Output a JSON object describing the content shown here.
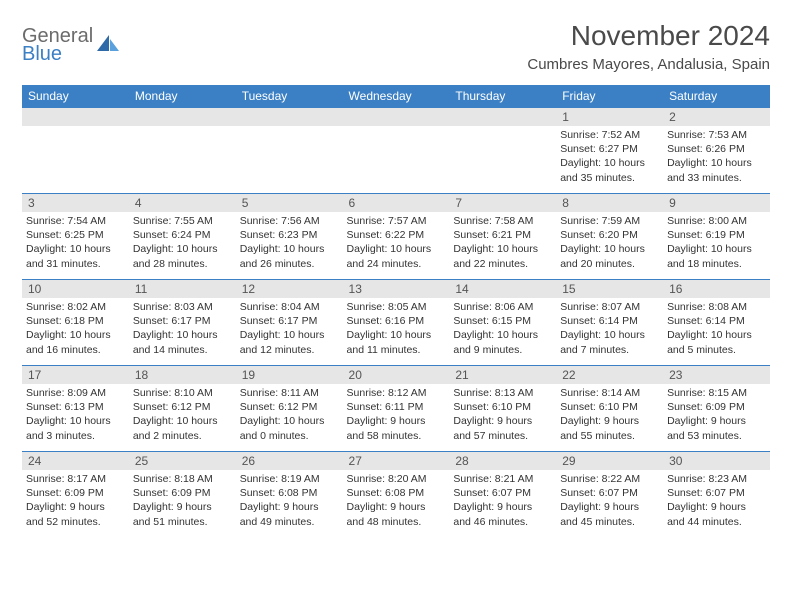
{
  "brand": {
    "line1": "General",
    "line2": "Blue"
  },
  "title": "November 2024",
  "location": "Cumbres Mayores, Andalusia, Spain",
  "colors": {
    "header_bg": "#3b7fc4",
    "daynum_bg": "#e6e6e6",
    "border": "#3b7fc4"
  },
  "day_headers": [
    "Sunday",
    "Monday",
    "Tuesday",
    "Wednesday",
    "Thursday",
    "Friday",
    "Saturday"
  ],
  "weeks": [
    [
      null,
      null,
      null,
      null,
      null,
      {
        "n": "1",
        "sr": "Sunrise: 7:52 AM",
        "ss": "Sunset: 6:27 PM",
        "dl1": "Daylight: 10 hours",
        "dl2": "and 35 minutes."
      },
      {
        "n": "2",
        "sr": "Sunrise: 7:53 AM",
        "ss": "Sunset: 6:26 PM",
        "dl1": "Daylight: 10 hours",
        "dl2": "and 33 minutes."
      }
    ],
    [
      {
        "n": "3",
        "sr": "Sunrise: 7:54 AM",
        "ss": "Sunset: 6:25 PM",
        "dl1": "Daylight: 10 hours",
        "dl2": "and 31 minutes."
      },
      {
        "n": "4",
        "sr": "Sunrise: 7:55 AM",
        "ss": "Sunset: 6:24 PM",
        "dl1": "Daylight: 10 hours",
        "dl2": "and 28 minutes."
      },
      {
        "n": "5",
        "sr": "Sunrise: 7:56 AM",
        "ss": "Sunset: 6:23 PM",
        "dl1": "Daylight: 10 hours",
        "dl2": "and 26 minutes."
      },
      {
        "n": "6",
        "sr": "Sunrise: 7:57 AM",
        "ss": "Sunset: 6:22 PM",
        "dl1": "Daylight: 10 hours",
        "dl2": "and 24 minutes."
      },
      {
        "n": "7",
        "sr": "Sunrise: 7:58 AM",
        "ss": "Sunset: 6:21 PM",
        "dl1": "Daylight: 10 hours",
        "dl2": "and 22 minutes."
      },
      {
        "n": "8",
        "sr": "Sunrise: 7:59 AM",
        "ss": "Sunset: 6:20 PM",
        "dl1": "Daylight: 10 hours",
        "dl2": "and 20 minutes."
      },
      {
        "n": "9",
        "sr": "Sunrise: 8:00 AM",
        "ss": "Sunset: 6:19 PM",
        "dl1": "Daylight: 10 hours",
        "dl2": "and 18 minutes."
      }
    ],
    [
      {
        "n": "10",
        "sr": "Sunrise: 8:02 AM",
        "ss": "Sunset: 6:18 PM",
        "dl1": "Daylight: 10 hours",
        "dl2": "and 16 minutes."
      },
      {
        "n": "11",
        "sr": "Sunrise: 8:03 AM",
        "ss": "Sunset: 6:17 PM",
        "dl1": "Daylight: 10 hours",
        "dl2": "and 14 minutes."
      },
      {
        "n": "12",
        "sr": "Sunrise: 8:04 AM",
        "ss": "Sunset: 6:17 PM",
        "dl1": "Daylight: 10 hours",
        "dl2": "and 12 minutes."
      },
      {
        "n": "13",
        "sr": "Sunrise: 8:05 AM",
        "ss": "Sunset: 6:16 PM",
        "dl1": "Daylight: 10 hours",
        "dl2": "and 11 minutes."
      },
      {
        "n": "14",
        "sr": "Sunrise: 8:06 AM",
        "ss": "Sunset: 6:15 PM",
        "dl1": "Daylight: 10 hours",
        "dl2": "and 9 minutes."
      },
      {
        "n": "15",
        "sr": "Sunrise: 8:07 AM",
        "ss": "Sunset: 6:14 PM",
        "dl1": "Daylight: 10 hours",
        "dl2": "and 7 minutes."
      },
      {
        "n": "16",
        "sr": "Sunrise: 8:08 AM",
        "ss": "Sunset: 6:14 PM",
        "dl1": "Daylight: 10 hours",
        "dl2": "and 5 minutes."
      }
    ],
    [
      {
        "n": "17",
        "sr": "Sunrise: 8:09 AM",
        "ss": "Sunset: 6:13 PM",
        "dl1": "Daylight: 10 hours",
        "dl2": "and 3 minutes."
      },
      {
        "n": "18",
        "sr": "Sunrise: 8:10 AM",
        "ss": "Sunset: 6:12 PM",
        "dl1": "Daylight: 10 hours",
        "dl2": "and 2 minutes."
      },
      {
        "n": "19",
        "sr": "Sunrise: 8:11 AM",
        "ss": "Sunset: 6:12 PM",
        "dl1": "Daylight: 10 hours",
        "dl2": "and 0 minutes."
      },
      {
        "n": "20",
        "sr": "Sunrise: 8:12 AM",
        "ss": "Sunset: 6:11 PM",
        "dl1": "Daylight: 9 hours",
        "dl2": "and 58 minutes."
      },
      {
        "n": "21",
        "sr": "Sunrise: 8:13 AM",
        "ss": "Sunset: 6:10 PM",
        "dl1": "Daylight: 9 hours",
        "dl2": "and 57 minutes."
      },
      {
        "n": "22",
        "sr": "Sunrise: 8:14 AM",
        "ss": "Sunset: 6:10 PM",
        "dl1": "Daylight: 9 hours",
        "dl2": "and 55 minutes."
      },
      {
        "n": "23",
        "sr": "Sunrise: 8:15 AM",
        "ss": "Sunset: 6:09 PM",
        "dl1": "Daylight: 9 hours",
        "dl2": "and 53 minutes."
      }
    ],
    [
      {
        "n": "24",
        "sr": "Sunrise: 8:17 AM",
        "ss": "Sunset: 6:09 PM",
        "dl1": "Daylight: 9 hours",
        "dl2": "and 52 minutes."
      },
      {
        "n": "25",
        "sr": "Sunrise: 8:18 AM",
        "ss": "Sunset: 6:09 PM",
        "dl1": "Daylight: 9 hours",
        "dl2": "and 51 minutes."
      },
      {
        "n": "26",
        "sr": "Sunrise: 8:19 AM",
        "ss": "Sunset: 6:08 PM",
        "dl1": "Daylight: 9 hours",
        "dl2": "and 49 minutes."
      },
      {
        "n": "27",
        "sr": "Sunrise: 8:20 AM",
        "ss": "Sunset: 6:08 PM",
        "dl1": "Daylight: 9 hours",
        "dl2": "and 48 minutes."
      },
      {
        "n": "28",
        "sr": "Sunrise: 8:21 AM",
        "ss": "Sunset: 6:07 PM",
        "dl1": "Daylight: 9 hours",
        "dl2": "and 46 minutes."
      },
      {
        "n": "29",
        "sr": "Sunrise: 8:22 AM",
        "ss": "Sunset: 6:07 PM",
        "dl1": "Daylight: 9 hours",
        "dl2": "and 45 minutes."
      },
      {
        "n": "30",
        "sr": "Sunrise: 8:23 AM",
        "ss": "Sunset: 6:07 PM",
        "dl1": "Daylight: 9 hours",
        "dl2": "and 44 minutes."
      }
    ]
  ]
}
